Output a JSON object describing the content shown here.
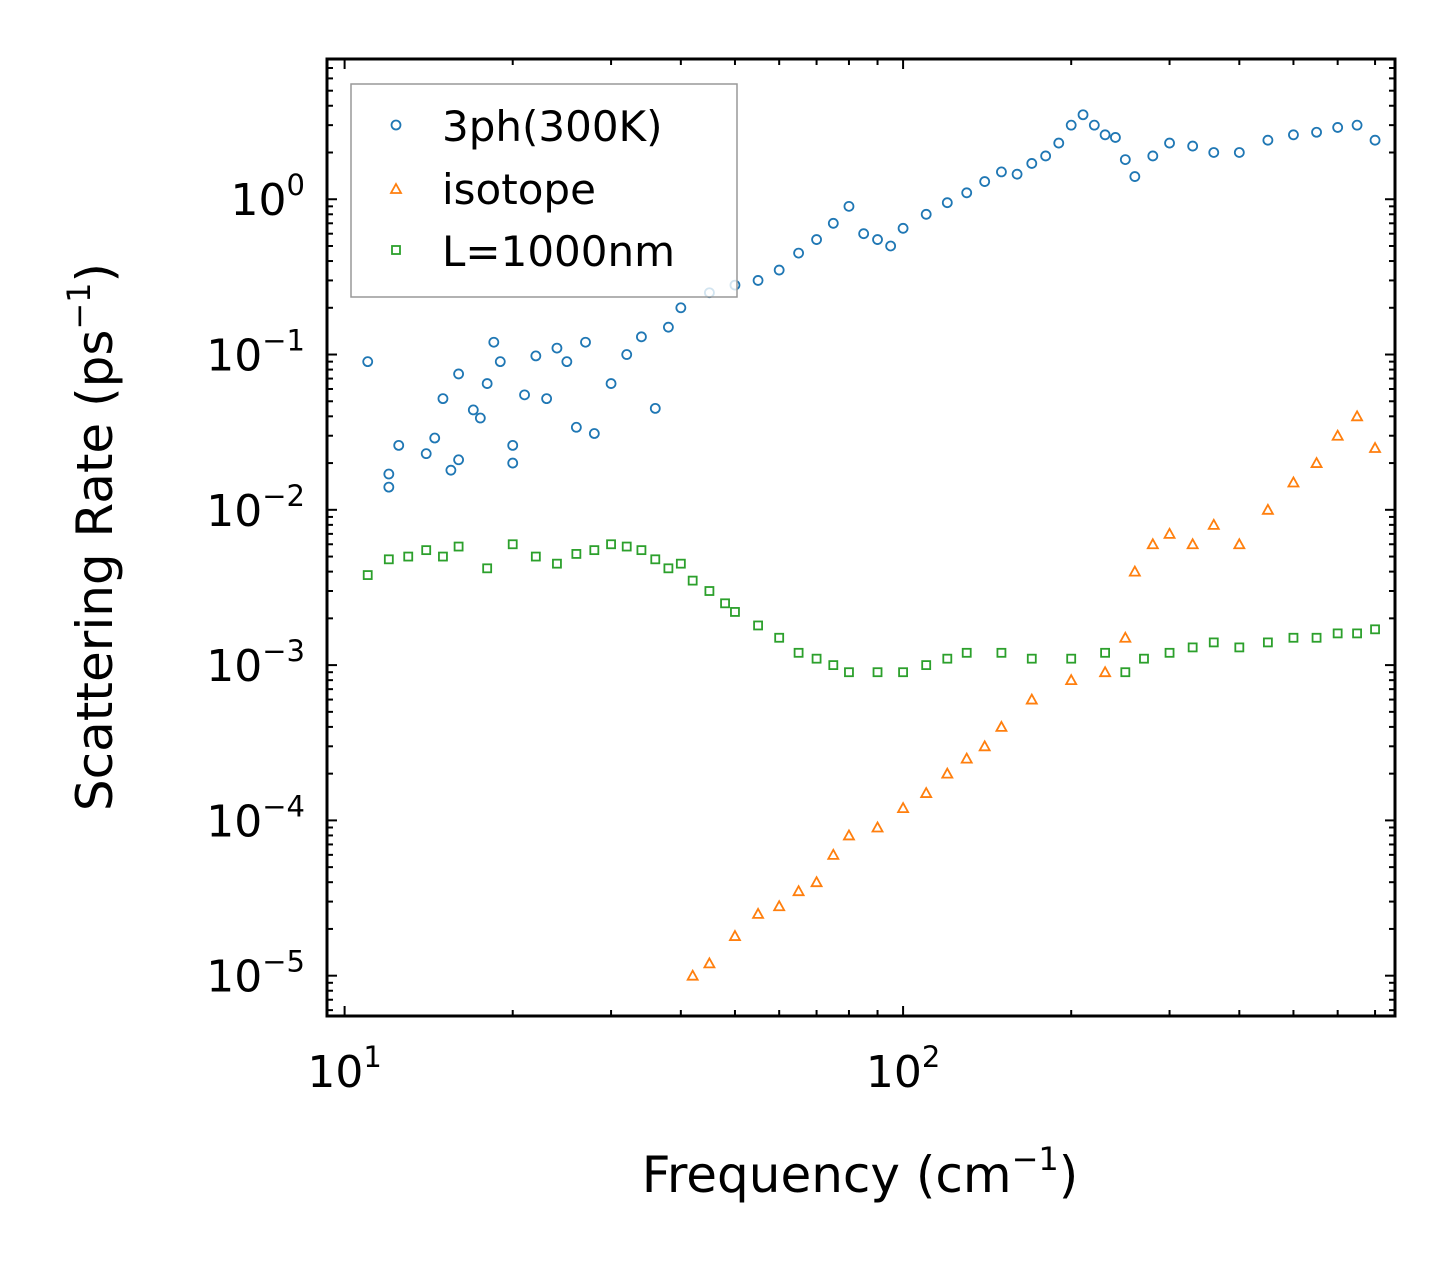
{
  "chart_data": {
    "type": "scatter",
    "title": "",
    "xlabel": "Frequency (cm",
    "xlabel_sup": "−1",
    "xlabel_close": ")",
    "ylabel": "Scattering Rate (ps",
    "ylabel_sup": "−1",
    "ylabel_close": ")",
    "xscale": "log",
    "yscale": "log",
    "xlim": [
      9.3,
      760
    ],
    "ylim": [
      5.5e-06,
      8
    ],
    "x_ticks": [
      {
        "value": 10,
        "base": "10",
        "exp": "1"
      },
      {
        "value": 100,
        "base": "10",
        "exp": "2"
      }
    ],
    "y_ticks": [
      {
        "value": 1,
        "base": "10",
        "exp": "0"
      },
      {
        "value": 0.1,
        "base": "10",
        "exp": "−1"
      },
      {
        "value": 0.01,
        "base": "10",
        "exp": "−2"
      },
      {
        "value": 0.001,
        "base": "10",
        "exp": "−3"
      },
      {
        "value": 0.0001,
        "base": "10",
        "exp": "−4"
      },
      {
        "value": 1e-05,
        "base": "10",
        "exp": "−5"
      }
    ],
    "legend": {
      "position": "top-left"
    },
    "series": [
      {
        "name": "3ph(300K)",
        "marker": "circle",
        "color": "#1f77b4",
        "x": [
          11,
          12,
          12,
          12.5,
          14,
          14.5,
          15,
          15.5,
          16,
          16,
          17,
          17.5,
          18,
          18.5,
          19,
          20,
          20,
          21,
          22,
          23,
          24,
          25,
          26,
          27,
          28,
          30,
          32,
          34,
          36,
          38,
          40,
          45,
          50,
          55,
          60,
          65,
          70,
          75,
          80,
          85,
          90,
          95,
          100,
          110,
          120,
          130,
          140,
          150,
          160,
          170,
          180,
          190,
          200,
          210,
          220,
          230,
          240,
          250,
          260,
          280,
          300,
          330,
          360,
          400,
          450,
          500,
          550,
          600,
          650,
          700
        ],
        "y": [
          0.09,
          0.014,
          0.017,
          0.026,
          0.023,
          0.029,
          0.052,
          0.018,
          0.075,
          0.021,
          0.044,
          0.039,
          0.065,
          0.12,
          0.09,
          0.02,
          0.026,
          0.055,
          0.098,
          0.052,
          0.11,
          0.09,
          0.034,
          0.12,
          0.031,
          0.065,
          0.1,
          0.13,
          0.045,
          0.15,
          0.2,
          0.25,
          0.28,
          0.3,
          0.35,
          0.45,
          0.55,
          0.7,
          0.9,
          0.6,
          0.55,
          0.5,
          0.65,
          0.8,
          0.95,
          1.1,
          1.3,
          1.5,
          1.45,
          1.7,
          1.9,
          2.3,
          3.0,
          3.5,
          3.0,
          2.6,
          2.5,
          1.8,
          1.4,
          1.9,
          2.3,
          2.2,
          2.0,
          2.0,
          2.4,
          2.6,
          2.7,
          2.9,
          3.0,
          2.4
        ]
      },
      {
        "name": "isotope",
        "marker": "triangle",
        "color": "#ff7f0e",
        "x": [
          42,
          45,
          50,
          55,
          60,
          65,
          70,
          75,
          80,
          90,
          100,
          110,
          120,
          130,
          140,
          150,
          170,
          200,
          230,
          250,
          260,
          280,
          300,
          330,
          360,
          400,
          450,
          500,
          550,
          600,
          650,
          700
        ],
        "y": [
          1e-05,
          1.2e-05,
          1.8e-05,
          2.5e-05,
          2.8e-05,
          3.5e-05,
          4e-05,
          6e-05,
          8e-05,
          9e-05,
          0.00012,
          0.00015,
          0.0002,
          0.00025,
          0.0003,
          0.0004,
          0.0006,
          0.0008,
          0.0009,
          0.0015,
          0.004,
          0.006,
          0.007,
          0.006,
          0.008,
          0.006,
          0.01,
          0.015,
          0.02,
          0.03,
          0.04,
          0.025
        ]
      },
      {
        "name": "L=1000nm",
        "marker": "square",
        "color": "#2ca02c",
        "x": [
          11,
          12,
          13,
          14,
          15,
          16,
          18,
          20,
          22,
          24,
          26,
          28,
          30,
          32,
          34,
          36,
          38,
          40,
          42,
          45,
          48,
          50,
          55,
          60,
          65,
          70,
          75,
          80,
          90,
          100,
          110,
          120,
          130,
          150,
          170,
          200,
          230,
          250,
          270,
          300,
          330,
          360,
          400,
          450,
          500,
          550,
          600,
          650,
          700
        ],
        "y": [
          0.0038,
          0.0048,
          0.005,
          0.0055,
          0.005,
          0.0058,
          0.0042,
          0.006,
          0.005,
          0.0045,
          0.0052,
          0.0055,
          0.006,
          0.0058,
          0.0055,
          0.0048,
          0.0042,
          0.0045,
          0.0035,
          0.003,
          0.0025,
          0.0022,
          0.0018,
          0.0015,
          0.0012,
          0.0011,
          0.001,
          0.0009,
          0.0009,
          0.0009,
          0.001,
          0.0011,
          0.0012,
          0.0012,
          0.0011,
          0.0011,
          0.0012,
          0.0009,
          0.0011,
          0.0012,
          0.0013,
          0.0014,
          0.0013,
          0.0014,
          0.0015,
          0.0015,
          0.0016,
          0.0016,
          0.0017
        ]
      }
    ]
  }
}
